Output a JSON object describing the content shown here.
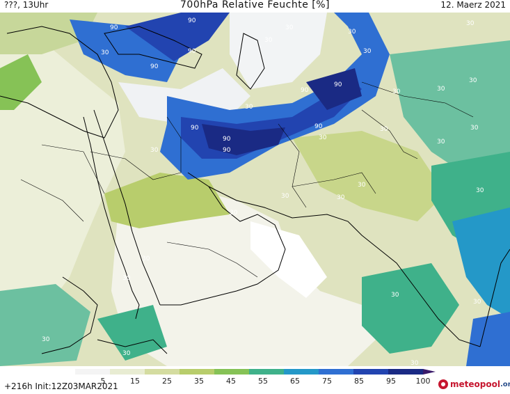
{
  "header": {
    "left": "???, 13Uhr",
    "title": "700hPa Relative Feuchte [%]",
    "right": "12. Maerz 2021"
  },
  "colorbar": {
    "ticks": [
      "5",
      "15",
      "25",
      "35",
      "45",
      "55",
      "65",
      "75",
      "85",
      "95",
      "100"
    ],
    "colors": [
      "#f4f4f4",
      "#e8ecd2",
      "#d4dca0",
      "#b8cd6c",
      "#86c256",
      "#3fb18a",
      "#2498c8",
      "#2f6fd2",
      "#2244b0",
      "#1a2a84",
      "#3a1a6a"
    ]
  },
  "footer": {
    "left": "+216h  Init:12Z03MAR2021"
  },
  "logo": {
    "main": "meteopool",
    "suffix": ".org"
  },
  "map": {
    "region": "Middle East and South Asia",
    "contour_labels_90": [
      "90",
      "90",
      "90",
      "90",
      "90",
      "90",
      "90",
      "90",
      "90",
      "90"
    ],
    "contour_labels_30": [
      "30",
      "30",
      "30",
      "30",
      "30",
      "30",
      "30",
      "30",
      "30",
      "30",
      "30",
      "30",
      "30",
      "30",
      "30",
      "30",
      "30",
      "30",
      "30",
      "30",
      "30",
      "30",
      "30",
      "30",
      "30",
      "30",
      "30",
      "30"
    ]
  }
}
